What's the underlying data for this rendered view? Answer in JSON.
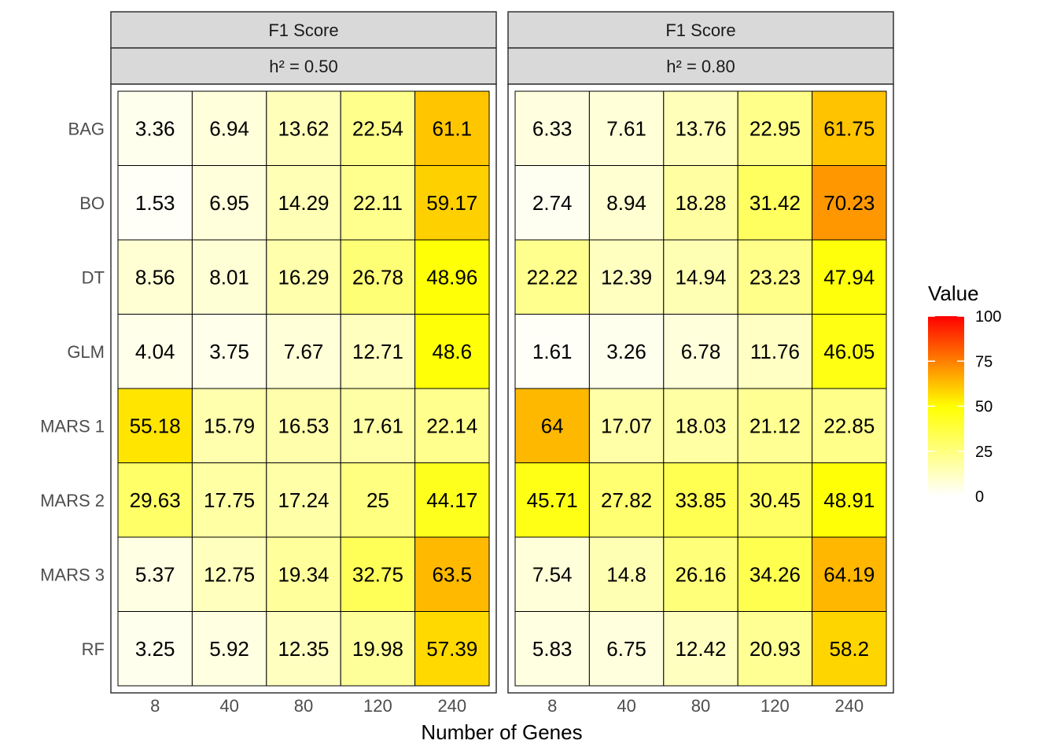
{
  "chart_data": {
    "type": "heatmap",
    "xlabel": "Number of Genes",
    "ylabel": "",
    "x_categories": [
      "8",
      "40",
      "80",
      "120",
      "240"
    ],
    "y_categories": [
      "BAG",
      "BO",
      "DT",
      "GLM",
      "MARS 1",
      "MARS 2",
      "MARS 3",
      "RF"
    ],
    "legend": {
      "title": "Value",
      "range": [
        0,
        100
      ],
      "ticks": [
        0,
        25,
        50,
        75,
        100
      ],
      "colors": [
        "#ffffff",
        "#ffff00",
        "#ff0000"
      ],
      "placement": "right"
    },
    "panels": [
      {
        "strip_top": "F1 Score",
        "strip_bottom": "h² = 0.50",
        "values": [
          [
            "3.36",
            "6.94",
            "13.62",
            "22.54",
            "61.1"
          ],
          [
            "1.53",
            "6.95",
            "14.29",
            "22.11",
            "59.17"
          ],
          [
            "8.56",
            "8.01",
            "16.29",
            "26.78",
            "48.96"
          ],
          [
            "4.04",
            "3.75",
            "7.67",
            "12.71",
            "48.6"
          ],
          [
            "55.18",
            "15.79",
            "16.53",
            "17.61",
            "22.14"
          ],
          [
            "29.63",
            "17.75",
            "17.24",
            "25",
            "44.17"
          ],
          [
            "5.37",
            "12.75",
            "19.34",
            "32.75",
            "63.5"
          ],
          [
            "3.25",
            "5.92",
            "12.35",
            "19.98",
            "57.39"
          ]
        ]
      },
      {
        "strip_top": "F1 Score",
        "strip_bottom": "h² = 0.80",
        "values": [
          [
            "6.33",
            "7.61",
            "13.76",
            "22.95",
            "61.75"
          ],
          [
            "2.74",
            "8.94",
            "18.28",
            "31.42",
            "70.23"
          ],
          [
            "22.22",
            "12.39",
            "14.94",
            "23.23",
            "47.94"
          ],
          [
            "1.61",
            "3.26",
            "6.78",
            "11.76",
            "46.05"
          ],
          [
            "64",
            "17.07",
            "18.03",
            "21.12",
            "22.85"
          ],
          [
            "45.71",
            "27.82",
            "33.85",
            "30.45",
            "48.91"
          ],
          [
            "7.54",
            "14.8",
            "26.16",
            "34.26",
            "64.19"
          ],
          [
            "5.83",
            "6.75",
            "12.42",
            "20.93",
            "58.2"
          ]
        ]
      }
    ]
  }
}
